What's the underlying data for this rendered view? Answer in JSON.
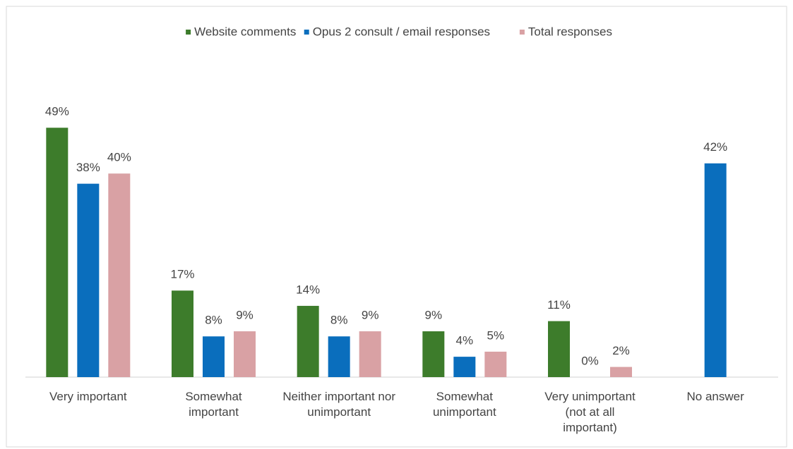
{
  "chart_data": {
    "type": "bar",
    "categories": [
      "Very important",
      "Somewhat important",
      "Neither important nor unimportant",
      "Somewhat unimportant",
      "Very unimportant (not at all important)",
      "No answer"
    ],
    "series": [
      {
        "name": "Website comments",
        "color": "#3d7c2b",
        "values": [
          49,
          17,
          14,
          9,
          11,
          null
        ],
        "value_labels": [
          "49%",
          "17%",
          "14%",
          "9%",
          "11%",
          null
        ]
      },
      {
        "name": "Opus 2 consult / email responses",
        "color": "#0a6ebd",
        "values": [
          38,
          8,
          8,
          4,
          0,
          42
        ],
        "value_labels": [
          "38%",
          "8%",
          "8%",
          "4%",
          "0%",
          "42%"
        ]
      },
      {
        "name": "Total responses",
        "color": "#d9a1a4",
        "values": [
          40,
          9,
          9,
          5,
          2,
          null
        ],
        "value_labels": [
          "40%",
          "9%",
          "9%",
          "5%",
          "2%",
          null
        ]
      }
    ],
    "ylim": [
      0,
      50
    ],
    "legend": "top"
  }
}
